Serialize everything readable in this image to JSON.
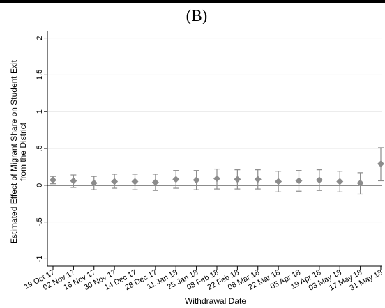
{
  "panel_label": "(B)",
  "chart_data": {
    "type": "scatter",
    "title": "",
    "xlabel": "Withdrawal Date",
    "ylabel_lines": [
      "Estimated Effect of Migrant Share on Student Exit",
      "from the District"
    ],
    "ylim": [
      -1.1,
      2.1
    ],
    "yticks": [
      -1,
      -0.5,
      0,
      0.5,
      1,
      1.5,
      2
    ],
    "ytick_labels": [
      "-1",
      "-.5",
      "0",
      ".5",
      "1",
      "1.5",
      "2"
    ],
    "grid": true,
    "zero_line": true,
    "categories": [
      "19 Oct 17",
      "02 Nov 17",
      "16 Nov 17",
      "30 Nov 17",
      "14 Dec 17",
      "28 Dec 17",
      "11 Jan 18",
      "25 Jan 18",
      "08 Feb 18",
      "22 Feb 18",
      "08 Mar 18",
      "22 Mar 18",
      "05 Apr 18",
      "19 Apr 18",
      "03 May 18",
      "17 May 18",
      "31 May 18"
    ],
    "series": [
      {
        "estimates": [
          0.07,
          0.06,
          0.03,
          0.05,
          0.05,
          0.04,
          0.08,
          0.07,
          0.09,
          0.08,
          0.08,
          0.05,
          0.06,
          0.07,
          0.05,
          0.03,
          0.29
        ],
        "ci_lower": [
          0.02,
          -0.03,
          -0.06,
          -0.04,
          -0.06,
          -0.07,
          -0.04,
          -0.06,
          -0.05,
          -0.05,
          -0.05,
          -0.09,
          -0.08,
          -0.07,
          -0.09,
          -0.12,
          0.06
        ],
        "ci_upper": [
          0.12,
          0.14,
          0.12,
          0.15,
          0.15,
          0.15,
          0.2,
          0.2,
          0.22,
          0.21,
          0.21,
          0.19,
          0.2,
          0.21,
          0.19,
          0.17,
          0.51
        ]
      }
    ],
    "colors": {
      "marker": "#8c8c8c",
      "grid": "#e6e6e6",
      "zero_line": "#1a1a1a",
      "axis": "#000000"
    }
  }
}
